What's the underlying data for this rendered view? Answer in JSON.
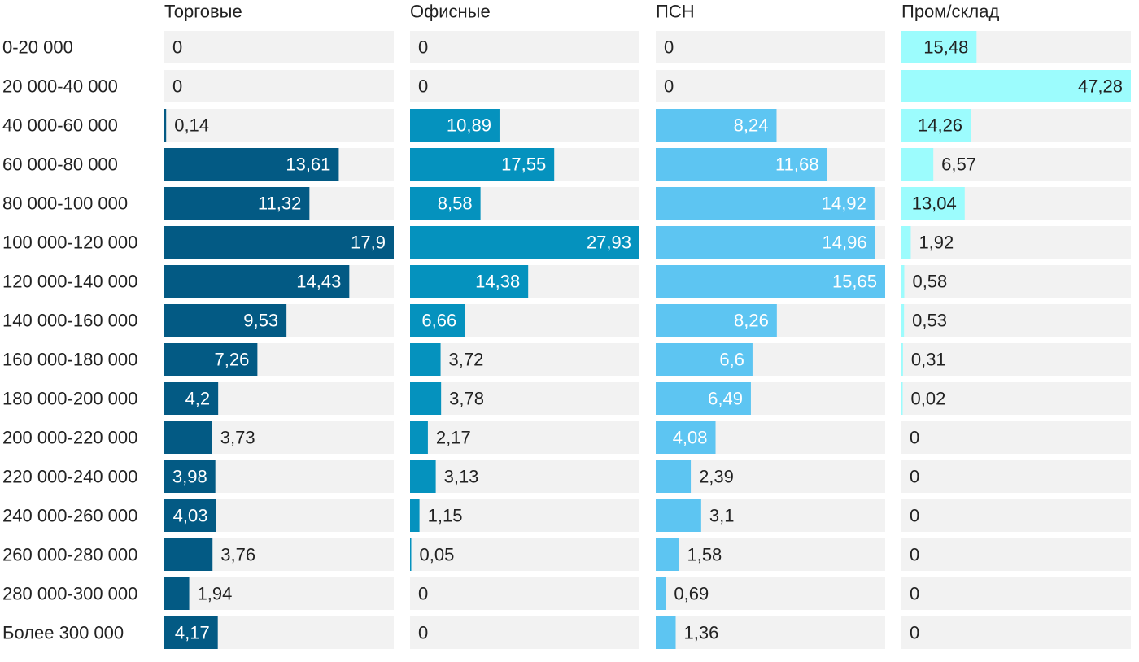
{
  "chart_data": {
    "type": "bar",
    "orientation": "horizontal",
    "layout": "small-multiples",
    "categories": [
      "0-20 000",
      "20 000-40 000",
      "40 000-60 000",
      "60 000-80 000",
      "80 000-100 000",
      "100 000-120 000",
      "120 000-140 000",
      "140 000-160 000",
      "160 000-180 000",
      "180 000-200 000",
      "200 000-220 000",
      "220 000-240 000",
      "240 000-260 000",
      "260 000-280 000",
      "280 000-300 000",
      "Более 300 000"
    ],
    "series": [
      {
        "name": "Торговые",
        "color": "#035a84",
        "values": [
          0,
          0,
          0.14,
          13.61,
          11.32,
          17.9,
          14.43,
          9.53,
          7.26,
          4.2,
          3.73,
          3.98,
          4.03,
          3.76,
          1.94,
          4.17
        ],
        "labels": [
          "0",
          "0",
          "0,14",
          "13,61",
          "11,32",
          "17,9",
          "14,43",
          "9,53",
          "7,26",
          "4,2",
          "3,73",
          "3,98",
          "4,03",
          "3,76",
          "1,94",
          "4,17"
        ]
      },
      {
        "name": "Офисные",
        "color": "#0592be",
        "values": [
          0,
          0,
          10.89,
          17.55,
          8.58,
          27.93,
          14.38,
          6.66,
          3.72,
          3.78,
          2.17,
          3.13,
          1.15,
          0.05,
          0,
          0
        ],
        "labels": [
          "0",
          "0",
          "10,89",
          "17,55",
          "8,58",
          "27,93",
          "14,38",
          "6,66",
          "3,72",
          "3,78",
          "2,17",
          "3,13",
          "1,15",
          "0,05",
          "0",
          "0"
        ]
      },
      {
        "name": "ПСН",
        "color": "#5dc5f2",
        "values": [
          0,
          0,
          8.24,
          11.68,
          14.92,
          14.96,
          15.65,
          8.26,
          6.6,
          6.49,
          4.08,
          2.39,
          3.1,
          1.58,
          0.69,
          1.36
        ],
        "labels": [
          "0",
          "0",
          "8,24",
          "11,68",
          "14,92",
          "14,96",
          "15,65",
          "8,26",
          "6,6",
          "6,49",
          "4,08",
          "2,39",
          "3,1",
          "1,58",
          "0,69",
          "1,36"
        ]
      },
      {
        "name": "Пром/склад",
        "color": "#9cfcfd",
        "values": [
          15.48,
          47.28,
          14.26,
          6.57,
          13.04,
          1.92,
          0.58,
          0.53,
          0.31,
          0.02,
          0,
          0,
          0,
          0,
          0,
          0
        ],
        "labels": [
          "15,48",
          "47,28",
          "14,26",
          "6,57",
          "13,04",
          "1,92",
          "0,58",
          "0,53",
          "0,31",
          "0,02",
          "0",
          "0",
          "0",
          "0",
          "0",
          "0"
        ]
      }
    ],
    "track_color": "#f2f2f2",
    "legend": "none",
    "grid": false
  }
}
